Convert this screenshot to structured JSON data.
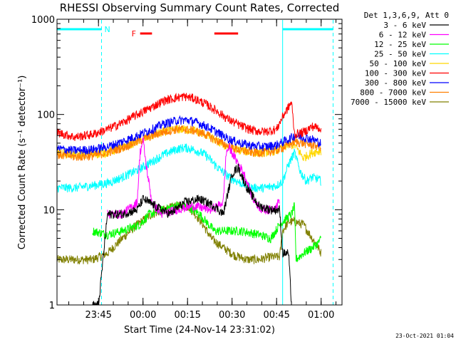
{
  "chart_data": {
    "type": "line",
    "title": "RHESSI Observing Summary Count Rates, Corrected",
    "xlabel": "Start Time (24-Nov-14 23:31:02)",
    "ylabel": "Corrected Count Rate (s⁻¹ detector⁻¹)",
    "y_scale": "log",
    "ylim": [
      1,
      1000
    ],
    "xlim_minutes": [
      0,
      96
    ],
    "x_ticks": [
      {
        "label": "23:45",
        "t": 13.97
      },
      {
        "label": "00:00",
        "t": 28.97
      },
      {
        "label": "00:15",
        "t": 43.97
      },
      {
        "label": "00:30",
        "t": 58.97
      },
      {
        "label": "00:45",
        "t": 73.97
      },
      {
        "label": "01:00",
        "t": 88.97
      }
    ],
    "y_ticks": [
      {
        "label": "1",
        "value": 1
      },
      {
        "label": "10",
        "value": 10
      },
      {
        "label": "100",
        "value": 100
      },
      {
        "label": "1000",
        "value": 1000
      }
    ],
    "legend_title": "Det 1,3,6,9, Att 0",
    "legend_position": "right",
    "grid": false,
    "series": [
      {
        "name": "3 - 6 keV",
        "color": "#000000",
        "points": [
          [
            12,
            1
          ],
          [
            14,
            1
          ],
          [
            17,
            9
          ],
          [
            22,
            9
          ],
          [
            27,
            10
          ],
          [
            29,
            13
          ],
          [
            33,
            11
          ],
          [
            38,
            9
          ],
          [
            43,
            12
          ],
          [
            48,
            13
          ],
          [
            53,
            11
          ],
          [
            56,
            9
          ],
          [
            59,
            24
          ],
          [
            61,
            28
          ],
          [
            64,
            17
          ],
          [
            68,
            11
          ],
          [
            72,
            10
          ],
          [
            75,
            10
          ],
          [
            76,
            3.5
          ],
          [
            78,
            3.5
          ],
          [
            79,
            1
          ]
        ]
      },
      {
        "name": "6 - 12 keV",
        "color": "#ff00ff",
        "points": [
          [
            17,
            9
          ],
          [
            22,
            9
          ],
          [
            27,
            12
          ],
          [
            28,
            40
          ],
          [
            29,
            55
          ],
          [
            30,
            30
          ],
          [
            32,
            12
          ],
          [
            35,
            9
          ],
          [
            40,
            10
          ],
          [
            46,
            11
          ],
          [
            52,
            10
          ],
          [
            56,
            12
          ],
          [
            57,
            40
          ],
          [
            58,
            45
          ],
          [
            60,
            35
          ],
          [
            63,
            24
          ],
          [
            66,
            13
          ],
          [
            69,
            10
          ],
          [
            72,
            10
          ],
          [
            74,
            11
          ],
          [
            75,
            13
          ]
        ]
      },
      {
        "name": "12 - 25 keV",
        "color": "#00ff00",
        "points": [
          [
            12,
            6
          ],
          [
            17,
            5.5
          ],
          [
            22,
            6
          ],
          [
            28,
            7
          ],
          [
            31,
            9
          ],
          [
            36,
            10
          ],
          [
            40,
            11
          ],
          [
            44,
            11
          ],
          [
            48,
            9
          ],
          [
            53,
            6
          ],
          [
            57,
            6
          ],
          [
            62,
            6
          ],
          [
            68,
            5.5
          ],
          [
            72,
            5
          ],
          [
            75,
            7
          ],
          [
            78,
            8.5
          ],
          [
            79,
            9
          ],
          [
            80,
            11
          ],
          [
            80.5,
            3
          ],
          [
            83,
            3.5
          ],
          [
            86,
            4
          ],
          [
            88,
            4.5
          ],
          [
            89,
            5
          ]
        ]
      },
      {
        "name": "25 - 50 keV",
        "color": "#00ffff",
        "points": [
          [
            0,
            17
          ],
          [
            6,
            17
          ],
          [
            12,
            18
          ],
          [
            17,
            19
          ],
          [
            22,
            22
          ],
          [
            27,
            26
          ],
          [
            32,
            32
          ],
          [
            36,
            38
          ],
          [
            40,
            43
          ],
          [
            43,
            45
          ],
          [
            46,
            43
          ],
          [
            50,
            38
          ],
          [
            54,
            28
          ],
          [
            58,
            22
          ],
          [
            62,
            19
          ],
          [
            66,
            17
          ],
          [
            70,
            17
          ],
          [
            74,
            18
          ],
          [
            76,
            20
          ],
          [
            78,
            30
          ],
          [
            80,
            40
          ],
          [
            82,
            25
          ],
          [
            84,
            20
          ],
          [
            86,
            22
          ],
          [
            88,
            21
          ],
          [
            89,
            20
          ]
        ]
      },
      {
        "name": "50 - 100 keV",
        "color": "#ffd700",
        "points": [
          [
            0,
            40
          ],
          [
            6,
            38
          ],
          [
            12,
            38
          ],
          [
            17,
            40
          ],
          [
            22,
            45
          ],
          [
            27,
            52
          ],
          [
            32,
            60
          ],
          [
            36,
            66
          ],
          [
            40,
            70
          ],
          [
            43,
            70
          ],
          [
            46,
            68
          ],
          [
            50,
            62
          ],
          [
            54,
            52
          ],
          [
            58,
            45
          ],
          [
            62,
            42
          ],
          [
            66,
            40
          ],
          [
            70,
            40
          ],
          [
            74,
            42
          ],
          [
            78,
            48
          ],
          [
            80,
            48
          ],
          [
            83,
            35
          ],
          [
            86,
            40
          ],
          [
            89,
            42
          ]
        ]
      },
      {
        "name": "100 - 300 keV",
        "color": "#ff0000",
        "points": [
          [
            0,
            65
          ],
          [
            6,
            58
          ],
          [
            12,
            62
          ],
          [
            17,
            70
          ],
          [
            22,
            82
          ],
          [
            27,
            100
          ],
          [
            32,
            120
          ],
          [
            36,
            140
          ],
          [
            40,
            150
          ],
          [
            43,
            155
          ],
          [
            46,
            148
          ],
          [
            50,
            130
          ],
          [
            54,
            108
          ],
          [
            58,
            88
          ],
          [
            62,
            76
          ],
          [
            66,
            68
          ],
          [
            70,
            66
          ],
          [
            74,
            70
          ],
          [
            76,
            95
          ],
          [
            78,
            120
          ],
          [
            79,
            135
          ],
          [
            80,
            62
          ],
          [
            83,
            65
          ],
          [
            86,
            75
          ],
          [
            89,
            72
          ]
        ]
      },
      {
        "name": "300 - 800 keV",
        "color": "#0000ff",
        "points": [
          [
            0,
            44
          ],
          [
            6,
            42
          ],
          [
            12,
            43
          ],
          [
            17,
            46
          ],
          [
            22,
            52
          ],
          [
            27,
            60
          ],
          [
            32,
            70
          ],
          [
            36,
            80
          ],
          [
            40,
            86
          ],
          [
            43,
            88
          ],
          [
            46,
            85
          ],
          [
            50,
            76
          ],
          [
            54,
            65
          ],
          [
            58,
            55
          ],
          [
            62,
            50
          ],
          [
            66,
            47
          ],
          [
            70,
            46
          ],
          [
            74,
            48
          ],
          [
            78,
            55
          ],
          [
            80,
            60
          ],
          [
            83,
            58
          ],
          [
            86,
            55
          ],
          [
            89,
            50
          ]
        ]
      },
      {
        "name": "800 - 7000 keV",
        "color": "#ff7f00",
        "points": [
          [
            0,
            38
          ],
          [
            6,
            36
          ],
          [
            12,
            37
          ],
          [
            17,
            40
          ],
          [
            22,
            45
          ],
          [
            27,
            52
          ],
          [
            32,
            60
          ],
          [
            36,
            66
          ],
          [
            40,
            70
          ],
          [
            43,
            70
          ],
          [
            46,
            68
          ],
          [
            50,
            62
          ],
          [
            54,
            53
          ],
          [
            58,
            46
          ],
          [
            62,
            42
          ],
          [
            66,
            40
          ],
          [
            70,
            40
          ],
          [
            74,
            42
          ],
          [
            78,
            48
          ],
          [
            80,
            52
          ],
          [
            83,
            50
          ],
          [
            86,
            48
          ],
          [
            89,
            46
          ]
        ]
      },
      {
        "name": "7000 - 15000 keV",
        "color": "#808000",
        "points": [
          [
            0,
            3
          ],
          [
            6,
            3
          ],
          [
            12,
            3
          ],
          [
            17,
            3.5
          ],
          [
            22,
            5
          ],
          [
            27,
            7
          ],
          [
            32,
            9
          ],
          [
            36,
            10
          ],
          [
            40,
            11
          ],
          [
            44,
            11
          ],
          [
            48,
            8
          ],
          [
            52,
            5
          ],
          [
            56,
            4
          ],
          [
            60,
            3.3
          ],
          [
            64,
            3
          ],
          [
            68,
            3
          ],
          [
            72,
            3.2
          ],
          [
            75,
            3.2
          ],
          [
            76,
            6
          ],
          [
            78,
            7.5
          ],
          [
            80,
            7.5
          ],
          [
            83,
            7
          ],
          [
            86,
            5
          ],
          [
            88,
            4
          ],
          [
            89,
            3.5
          ]
        ]
      }
    ],
    "bars": [
      {
        "label": "N",
        "color": "#00ffff",
        "segments": [
          [
            0,
            15
          ],
          [
            76,
            93
          ]
        ]
      },
      {
        "label": "F",
        "color": "#ff0000",
        "segments": [
          [
            28,
            32
          ],
          [
            53,
            61
          ]
        ]
      }
    ],
    "vertical_markers": [
      {
        "t": 0,
        "color": "#00ffff",
        "style": "solid"
      },
      {
        "t": 15,
        "color": "#00ffff",
        "style": "dashed"
      },
      {
        "t": 76,
        "color": "#00ffff",
        "style": "solid"
      },
      {
        "t": 93,
        "color": "#00ffff",
        "style": "dashed"
      }
    ]
  },
  "timestamp": "23-Oct-2021 01:04"
}
